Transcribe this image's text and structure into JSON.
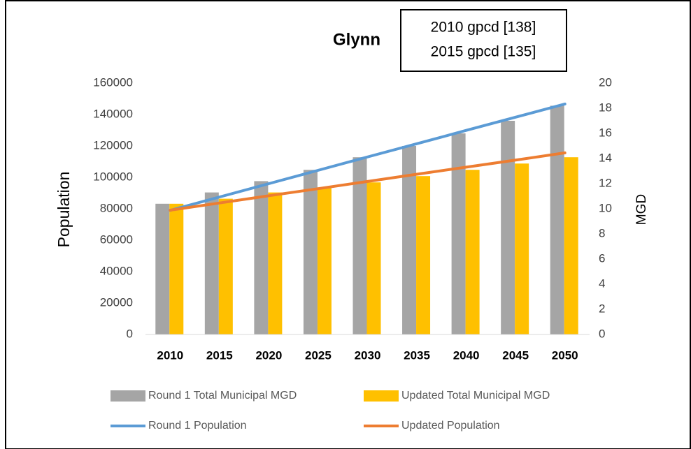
{
  "chart_data": {
    "type": "bar",
    "title": "Glynn",
    "annotations": [
      "2010 gpcd [138]",
      "2015 gpcd [135]"
    ],
    "y_label": "Population",
    "y2_label": "MGD",
    "categories": [
      "2010",
      "2015",
      "2020",
      "2025",
      "2030",
      "2035",
      "2040",
      "2045",
      "2050"
    ],
    "series": [
      {
        "name": "Round 1 Total Municipal MGD",
        "type": "bar",
        "axis": "y2",
        "color": "#a5a5a5",
        "values": [
          10.4,
          11.3,
          12.2,
          13.1,
          14.1,
          15.0,
          16.0,
          17.0,
          18.2
        ]
      },
      {
        "name": "Updated Total Municipal MGD",
        "type": "bar",
        "axis": "y2",
        "color": "#ffc000",
        "values": [
          10.4,
          10.8,
          11.3,
          11.7,
          12.1,
          12.6,
          13.1,
          13.6,
          14.1
        ]
      },
      {
        "name": "Round 1 Population",
        "type": "line",
        "color": "#5b9bd5",
        "values": [
          79000,
          87500,
          96000,
          104500,
          113000,
          121400,
          129900,
          138300,
          146700
        ]
      },
      {
        "name": "Updated Population",
        "type": "line",
        "color": "#ed7d31",
        "values": [
          79100,
          83700,
          88300,
          92800,
          97400,
          102000,
          106500,
          111000,
          115600
        ]
      }
    ],
    "ylim": [
      0,
      160000
    ],
    "yticks": [
      0,
      20000,
      40000,
      60000,
      80000,
      100000,
      120000,
      140000,
      160000
    ],
    "y2lim": [
      0,
      20
    ],
    "y2ticks": [
      0,
      2,
      4,
      6,
      8,
      10,
      12,
      14,
      16,
      18,
      20
    ],
    "grid": false
  }
}
